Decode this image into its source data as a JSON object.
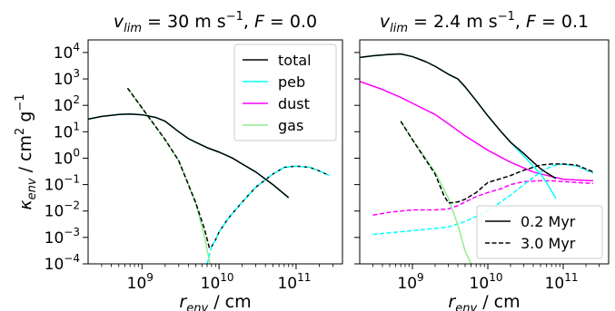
{
  "chart_data": [
    {
      "type": "line",
      "title": "v_lim = 30 m s⁻¹, F = 0.0",
      "title_parts": {
        "var": "v",
        "sub": "lim",
        "rest": " = 30 m s",
        "sup": "−1",
        "tail": ", ",
        "f_var": "F",
        "f_rest": " = 0.0"
      },
      "xlabel": {
        "var": "r",
        "sub": "env",
        "rest": " / cm"
      },
      "ylabel": {
        "var": "κ",
        "sub": "env",
        "rest": " / cm",
        "sup1": "2",
        "mid": " g",
        "sup2": "−1"
      },
      "x_scale": "log",
      "y_scale": "log",
      "xlim": [
        200000000.0,
        400000000000.0
      ],
      "ylim": [
        0.0001,
        30000.0
      ],
      "x_ticks": [
        {
          "value": 1000000000.0,
          "base": "10",
          "exp": "9"
        },
        {
          "value": 10000000000.0,
          "base": "10",
          "exp": "10"
        },
        {
          "value": 100000000000.0,
          "base": "10",
          "exp": "11"
        }
      ],
      "y_ticks": [
        {
          "value": 0.0001,
          "base": "10",
          "exp": "−4"
        },
        {
          "value": 0.001,
          "base": "10",
          "exp": "−3"
        },
        {
          "value": 0.01,
          "base": "10",
          "exp": "−2"
        },
        {
          "value": 0.1,
          "base": "10",
          "exp": "−1"
        },
        {
          "value": 1,
          "base": "10",
          "exp": "0"
        },
        {
          "value": 10,
          "base": "10",
          "exp": "1"
        },
        {
          "value": 100,
          "base": "10",
          "exp": "2"
        },
        {
          "value": 1000,
          "base": "10",
          "exp": "3"
        },
        {
          "value": 10000,
          "base": "10",
          "exp": "4"
        }
      ],
      "show_yticklabels": true,
      "legend": {
        "placement": "upper-right",
        "entries": [
          {
            "label": "total",
            "color": "#000000",
            "dash": "solid"
          },
          {
            "label": "peb",
            "color": "#00ffff",
            "dash": "solid"
          },
          {
            "label": "dust",
            "color": "#ff00ff",
            "dash": "solid"
          },
          {
            "label": "gas",
            "color": "#90ee90",
            "dash": "solid"
          }
        ]
      },
      "series": [
        {
          "color": "#90ee90",
          "dash": "solid",
          "x": [
            650000000.0,
            1000000000.0,
            2000000000.0,
            3000000000.0,
            5000000000.0,
            6500000000.0,
            8000000000.0
          ],
          "y": [
            450,
            80,
            5,
            0.8,
            0.02,
            0.001,
            5e-05
          ]
        },
        {
          "color": "#000000",
          "dash": "dash",
          "x": [
            650000000.0,
            1000000000.0,
            2000000000.0,
            3000000000.0,
            5000000000.0,
            6500000000.0,
            7500000000.0,
            8000000000.0,
            9000000000.0,
            10000000000.0,
            13000000000.0,
            20000000000.0,
            30000000000.0,
            50000000000.0,
            70000000000.0,
            100000000000.0,
            150000000000.0,
            200000000000.0,
            270000000000.0
          ],
          "y": [
            450,
            80,
            5,
            0.8,
            0.02,
            0.002,
            0.0004,
            0.00045,
            0.0008,
            0.0016,
            0.005,
            0.022,
            0.08,
            0.25,
            0.45,
            0.5,
            0.45,
            0.33,
            0.22
          ]
        },
        {
          "color": "#00ffff",
          "dash": "dash",
          "x": [
            7000000000.0,
            8000000000.0,
            9000000000.0,
            10000000000.0,
            13000000000.0,
            20000000000.0,
            30000000000.0,
            50000000000.0,
            70000000000.0,
            100000000000.0,
            150000000000.0,
            200000000000.0,
            270000000000.0
          ],
          "y": [
            0.0001,
            0.00045,
            0.0008,
            0.0016,
            0.005,
            0.022,
            0.08,
            0.25,
            0.45,
            0.5,
            0.45,
            0.33,
            0.22
          ]
        },
        {
          "color": "#00ffff",
          "dash": "solid",
          "x": [
            200000000.0,
            300000000.0,
            500000000.0,
            700000000.0,
            1000000000.0,
            1500000000.0,
            2000000000.0,
            3000000000.0,
            4000000000.0,
            5000000000.0,
            7000000000.0,
            10000000000.0,
            15000000000.0,
            20000000000.0,
            30000000000.0,
            50000000000.0,
            80000000000.0
          ],
          "y": [
            30,
            38,
            45,
            47,
            44,
            35,
            25,
            10,
            5.5,
            4,
            2.5,
            1.7,
            1.0,
            0.6,
            0.3,
            0.1,
            0.032
          ]
        },
        {
          "color": "#000000",
          "dash": "solid",
          "x": [
            200000000.0,
            300000000.0,
            500000000.0,
            700000000.0,
            1000000000.0,
            1500000000.0,
            2000000000.0,
            3000000000.0,
            4000000000.0,
            5000000000.0,
            7000000000.0,
            10000000000.0,
            15000000000.0,
            20000000000.0,
            30000000000.0,
            50000000000.0,
            80000000000.0
          ],
          "y": [
            30,
            38,
            45,
            47,
            44,
            35,
            25,
            10,
            5.5,
            4,
            2.5,
            1.7,
            1.0,
            0.6,
            0.3,
            0.1,
            0.032
          ]
        }
      ]
    },
    {
      "type": "line",
      "title_parts": {
        "var": "v",
        "sub": "lim",
        "rest": " = 2.4 m s",
        "sup": "−1",
        "tail": ", ",
        "f_var": "F",
        "f_rest": " = 0.1"
      },
      "xlabel": {
        "var": "r",
        "sub": "env",
        "rest": " / cm"
      },
      "x_scale": "log",
      "y_scale": "log",
      "xlim": [
        200000000.0,
        400000000000.0
      ],
      "ylim": [
        0.0001,
        30000.0
      ],
      "x_ticks": [
        {
          "value": 1000000000.0,
          "base": "10",
          "exp": "9"
        },
        {
          "value": 10000000000.0,
          "base": "10",
          "exp": "10"
        },
        {
          "value": 100000000000.0,
          "base": "10",
          "exp": "11"
        }
      ],
      "y_ticks": [
        {
          "value": 0.0001
        },
        {
          "value": 0.001
        },
        {
          "value": 0.01
        },
        {
          "value": 0.1
        },
        {
          "value": 1
        },
        {
          "value": 10
        },
        {
          "value": 100
        },
        {
          "value": 1000
        },
        {
          "value": 10000
        }
      ],
      "show_yticklabels": false,
      "legend": {
        "placement": "lower-right",
        "entries": [
          {
            "label": "0.2 Myr",
            "color": "#000000",
            "dash": "solid"
          },
          {
            "label": "3.0 Myr",
            "color": "#000000",
            "dash": "dash"
          }
        ]
      },
      "series": [
        {
          "color": "#ff00ff",
          "dash": "solid",
          "x": [
            200000000.0,
            400000000.0,
            700000000.0,
            1000000000.0,
            2000000000.0,
            3000000000.0,
            5000000000.0,
            10000000000.0,
            20000000000.0,
            40000000000.0,
            70000000000.0,
            100000000000.0,
            150000000000.0,
            250000000000.0
          ],
          "y": [
            800,
            400,
            200,
            120,
            45,
            20,
            7,
            2,
            0.7,
            0.3,
            0.2,
            0.16,
            0.15,
            0.14
          ]
        },
        {
          "color": "#ff00ff",
          "dash": "dash",
          "x": [
            300000000.0,
            500000000.0,
            700000000.0,
            1000000000.0,
            2000000000.0,
            3000000000.0,
            4000000000.0,
            5000000000.0,
            7000000000.0,
            10000000000.0,
            15000000000.0,
            20000000000.0,
            30000000000.0,
            50000000000.0,
            70000000000.0,
            100000000000.0,
            150000000000.0,
            250000000000.0
          ],
          "y": [
            0.007,
            0.009,
            0.01,
            0.011,
            0.011,
            0.012,
            0.016,
            0.022,
            0.035,
            0.05,
            0.07,
            0.1,
            0.13,
            0.14,
            0.14,
            0.13,
            0.12,
            0.11
          ]
        },
        {
          "color": "#00ffff",
          "dash": "dash",
          "x": [
            300000000.0,
            500000000.0,
            1000000000.0,
            2000000000.0,
            3000000000.0,
            5000000000.0,
            10000000000.0,
            20000000000.0,
            30000000000.0,
            50000000000.0,
            70000000000.0,
            100000000000.0,
            150000000000.0,
            250000000000.0
          ],
          "y": [
            0.0013,
            0.0015,
            0.0018,
            0.0022,
            0.0025,
            0.004,
            0.01,
            0.04,
            0.1,
            0.3,
            0.5,
            0.6,
            0.5,
            0.27
          ]
        },
        {
          "color": "#90ee90",
          "dash": "solid",
          "x": [
            700000000.0,
            1000000000.0,
            2000000000.0,
            3000000000.0,
            4000000000.0,
            5000000000.0,
            6000000000.0
          ],
          "y": [
            25,
            5,
            0.3,
            0.03,
            0.003,
            0.0003,
            0.0001
          ]
        },
        {
          "color": "#000000",
          "dash": "dash",
          "x": [
            700000000.0,
            1000000000.0,
            2000000000.0,
            2600000000.0,
            3000000000.0,
            4000000000.0,
            5000000000.0,
            7000000000.0,
            10000000000.0,
            15000000000.0,
            20000000000.0,
            30000000000.0,
            50000000000.0,
            70000000000.0,
            100000000000.0,
            150000000000.0,
            250000000000.0
          ],
          "y": [
            25,
            5,
            0.25,
            0.04,
            0.02,
            0.022,
            0.028,
            0.05,
            0.12,
            0.17,
            0.22,
            0.35,
            0.55,
            0.6,
            0.6,
            0.55,
            0.3
          ]
        },
        {
          "color": "#00ffff",
          "dash": "solid",
          "x": [
            200000000.0,
            300000000.0,
            500000000.0,
            700000000.0,
            1000000000.0,
            1500000000.0,
            2000000000.0,
            3000000000.0,
            4000000000.0,
            5000000000.0,
            7000000000.0,
            10000000000.0,
            15000000000.0,
            20000000000.0,
            30000000000.0,
            40000000000.0,
            50000000000.0,
            60000000000.0,
            80000000000.0
          ],
          "y": [
            6500,
            7500,
            8500,
            8800,
            7000,
            4500,
            3000,
            1500,
            1000,
            500,
            150,
            40,
            10,
            4,
            1.2,
            0.5,
            0.25,
            0.12,
            0.03
          ]
        },
        {
          "color": "#000000",
          "dash": "solid",
          "x": [
            200000000.0,
            300000000.0,
            500000000.0,
            700000000.0,
            1000000000.0,
            1500000000.0,
            2000000000.0,
            3000000000.0,
            4000000000.0,
            5000000000.0,
            7000000000.0,
            10000000000.0,
            15000000000.0,
            20000000000.0,
            30000000000.0,
            40000000000.0,
            50000000000.0,
            60000000000.0,
            80000000000.0
          ],
          "y": [
            6500,
            7500,
            8500,
            8800,
            7000,
            4500,
            3000,
            1500,
            1000,
            500,
            150,
            40,
            10,
            4,
            1.5,
            0.7,
            0.4,
            0.28,
            0.17
          ]
        }
      ]
    }
  ]
}
